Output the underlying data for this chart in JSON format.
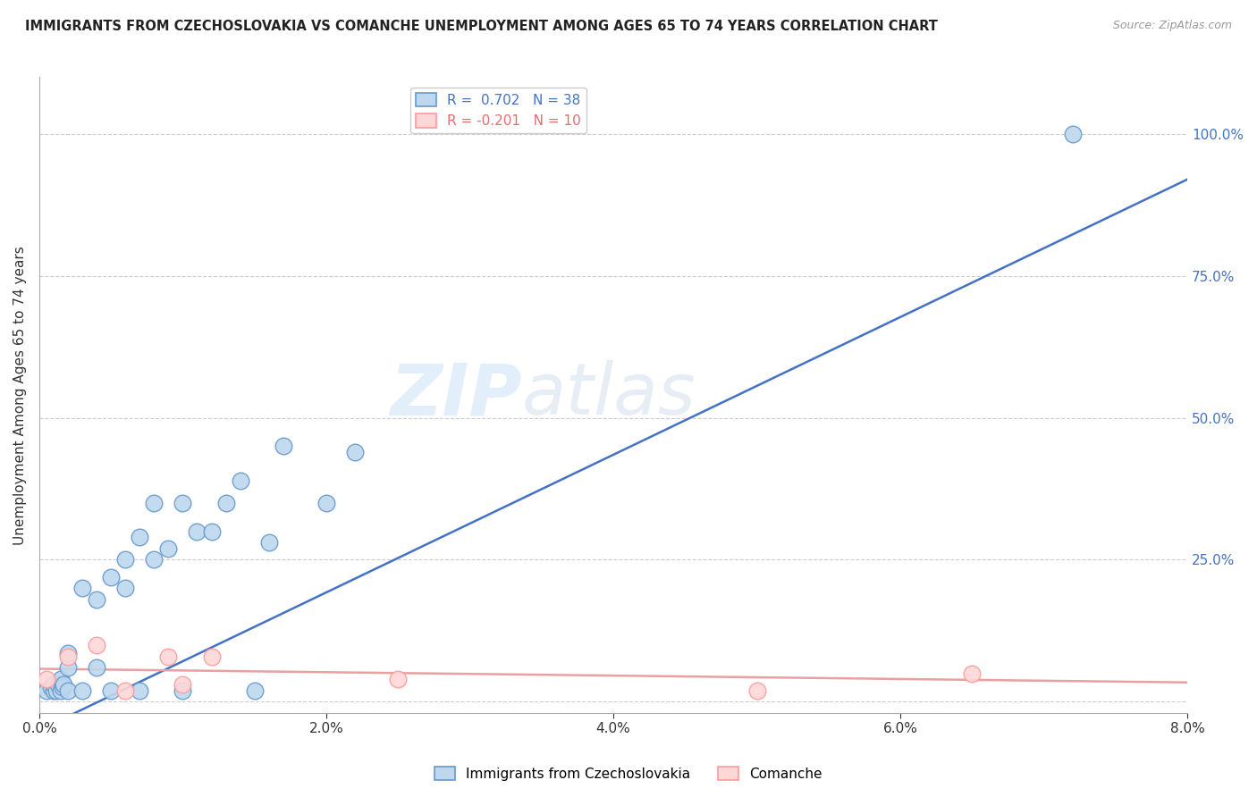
{
  "title": "IMMIGRANTS FROM CZECHOSLOVAKIA VS COMANCHE UNEMPLOYMENT AMONG AGES 65 TO 74 YEARS CORRELATION CHART",
  "source": "Source: ZipAtlas.com",
  "xlabel_ticks": [
    "0.0%",
    "2.0%",
    "4.0%",
    "6.0%",
    "8.0%"
  ],
  "xlabel_vals": [
    0.0,
    0.02,
    0.04,
    0.06,
    0.08
  ],
  "ylabel_left": "Unemployment Among Ages 65 to 74 years",
  "ylabel_right_ticks": [
    "100.0%",
    "75.0%",
    "50.0%",
    "25.0%"
  ],
  "ylabel_right_vals": [
    1.0,
    0.75,
    0.5,
    0.25
  ],
  "xlim": [
    0.0,
    0.08
  ],
  "ylim": [
    -0.02,
    1.1
  ],
  "blue_color": "#6699CC",
  "pink_color": "#FF9999",
  "blue_fill": "#BDD7EE",
  "pink_fill": "#FFD7D7",
  "line_blue": "#4472C4",
  "line_pink": "#FF9999",
  "watermark_zip": "ZIP",
  "watermark_atlas": "atlas",
  "legend_R1": "R =  0.702",
  "legend_N1": "N = 38",
  "legend_R2": "R = -0.201",
  "legend_N2": "N = 10",
  "blue_x": [
    0.0005,
    0.0008,
    0.001,
    0.001,
    0.0012,
    0.0013,
    0.0015,
    0.0015,
    0.0016,
    0.0017,
    0.002,
    0.002,
    0.002,
    0.003,
    0.003,
    0.004,
    0.004,
    0.005,
    0.005,
    0.006,
    0.006,
    0.007,
    0.007,
    0.008,
    0.008,
    0.009,
    0.01,
    0.01,
    0.011,
    0.012,
    0.013,
    0.014,
    0.015,
    0.016,
    0.017,
    0.02,
    0.022,
    0.072
  ],
  "blue_y": [
    0.02,
    0.025,
    0.02,
    0.03,
    0.02,
    0.03,
    0.02,
    0.04,
    0.025,
    0.03,
    0.02,
    0.06,
    0.085,
    0.02,
    0.2,
    0.06,
    0.18,
    0.02,
    0.22,
    0.25,
    0.2,
    0.02,
    0.29,
    0.25,
    0.35,
    0.27,
    0.02,
    0.35,
    0.3,
    0.3,
    0.35,
    0.39,
    0.02,
    0.28,
    0.45,
    0.35,
    0.44,
    1.0
  ],
  "pink_x": [
    0.0005,
    0.002,
    0.004,
    0.006,
    0.009,
    0.01,
    0.012,
    0.025,
    0.05,
    0.065
  ],
  "pink_y": [
    0.04,
    0.08,
    0.1,
    0.02,
    0.08,
    0.03,
    0.08,
    0.04,
    0.02,
    0.05
  ],
  "blue_line_x": [
    0.0,
    0.08
  ],
  "blue_line_y": [
    -0.05,
    0.92
  ],
  "pink_line_x": [
    0.0,
    0.08
  ],
  "pink_line_y": [
    0.058,
    0.034
  ],
  "grid_color": "#CCCCCC",
  "background": "#FFFFFF"
}
